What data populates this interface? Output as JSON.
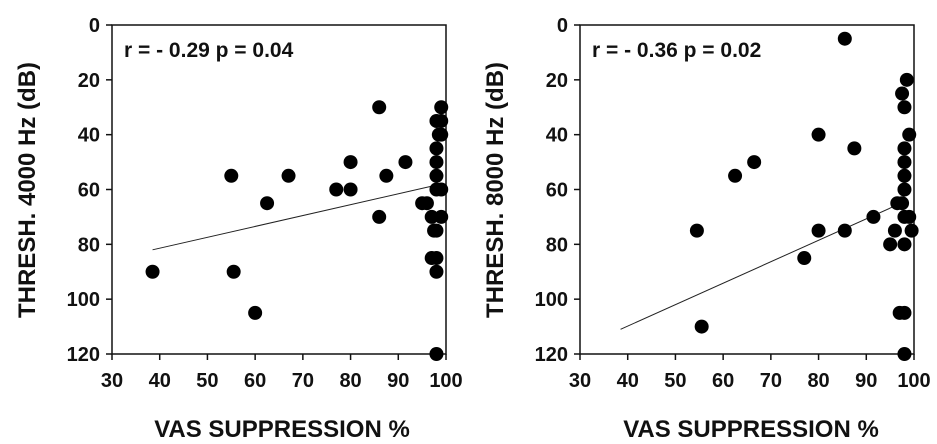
{
  "chart_data": [
    {
      "type": "scatter",
      "xlabel": "VAS SUPPRESSION %",
      "ylabel": "THRESH. 4000 Hz (dB)",
      "annotation": "r = - 0.29  p = 0.04",
      "xlim": [
        30,
        100
      ],
      "ylim": [
        0,
        120
      ],
      "y_inverted": true,
      "xticks": [
        "30",
        "40",
        "50",
        "60",
        "70",
        "80",
        "90",
        "100"
      ],
      "yticks": [
        "0",
        "20",
        "40",
        "60",
        "80",
        "100",
        "120"
      ],
      "points": [
        {
          "x": 38.5,
          "y": 90
        },
        {
          "x": 55,
          "y": 55
        },
        {
          "x": 55.5,
          "y": 90
        },
        {
          "x": 60,
          "y": 105
        },
        {
          "x": 62.5,
          "y": 65
        },
        {
          "x": 67,
          "y": 55
        },
        {
          "x": 77,
          "y": 60
        },
        {
          "x": 80,
          "y": 60
        },
        {
          "x": 80,
          "y": 50
        },
        {
          "x": 86,
          "y": 30
        },
        {
          "x": 86,
          "y": 70
        },
        {
          "x": 87.5,
          "y": 55
        },
        {
          "x": 91.5,
          "y": 50
        },
        {
          "x": 95,
          "y": 65
        },
        {
          "x": 96,
          "y": 65
        },
        {
          "x": 97,
          "y": 70
        },
        {
          "x": 97,
          "y": 85
        },
        {
          "x": 97.5,
          "y": 75
        },
        {
          "x": 98,
          "y": 35
        },
        {
          "x": 98,
          "y": 45
        },
        {
          "x": 98,
          "y": 50
        },
        {
          "x": 98,
          "y": 55
        },
        {
          "x": 98,
          "y": 60
        },
        {
          "x": 98,
          "y": 75
        },
        {
          "x": 98,
          "y": 85
        },
        {
          "x": 98,
          "y": 90
        },
        {
          "x": 98,
          "y": 120
        },
        {
          "x": 98.5,
          "y": 40
        },
        {
          "x": 99,
          "y": 30
        },
        {
          "x": 99,
          "y": 35
        },
        {
          "x": 99,
          "y": 40
        },
        {
          "x": 99,
          "y": 60
        },
        {
          "x": 99,
          "y": 70
        }
      ],
      "trendline": [
        {
          "x": 38.5,
          "y": 82
        },
        {
          "x": 99,
          "y": 58
        }
      ]
    },
    {
      "type": "scatter",
      "xlabel": "VAS SUPPRESSION %",
      "ylabel": "THRESH. 8000 Hz (dB)",
      "annotation": "r = - 0.36  p = 0.02",
      "xlim": [
        30,
        100
      ],
      "ylim": [
        0,
        120
      ],
      "y_inverted": true,
      "xticks": [
        "30",
        "40",
        "50",
        "60",
        "70",
        "80",
        "90",
        "100"
      ],
      "yticks": [
        "0",
        "20",
        "40",
        "60",
        "80",
        "100",
        "120"
      ],
      "points": [
        {
          "x": 54.5,
          "y": 75
        },
        {
          "x": 55.5,
          "y": 110
        },
        {
          "x": 62.5,
          "y": 55
        },
        {
          "x": 66.5,
          "y": 50
        },
        {
          "x": 77,
          "y": 85
        },
        {
          "x": 80,
          "y": 40
        },
        {
          "x": 80,
          "y": 75
        },
        {
          "x": 85.5,
          "y": 75
        },
        {
          "x": 85.5,
          "y": 5
        },
        {
          "x": 87.5,
          "y": 45
        },
        {
          "x": 91.5,
          "y": 70
        },
        {
          "x": 95,
          "y": 80
        },
        {
          "x": 96,
          "y": 75
        },
        {
          "x": 96.5,
          "y": 65
        },
        {
          "x": 97,
          "y": 105
        },
        {
          "x": 97.5,
          "y": 25
        },
        {
          "x": 97.5,
          "y": 65
        },
        {
          "x": 98,
          "y": 30
        },
        {
          "x": 98,
          "y": 45
        },
        {
          "x": 98,
          "y": 50
        },
        {
          "x": 98,
          "y": 55
        },
        {
          "x": 98,
          "y": 60
        },
        {
          "x": 98,
          "y": 70
        },
        {
          "x": 98,
          "y": 80
        },
        {
          "x": 98,
          "y": 105
        },
        {
          "x": 98,
          "y": 120
        },
        {
          "x": 98.5,
          "y": 20
        },
        {
          "x": 99,
          "y": 40
        },
        {
          "x": 99,
          "y": 70
        },
        {
          "x": 99.5,
          "y": 75
        }
      ],
      "trendline": [
        {
          "x": 38.5,
          "y": 111
        },
        {
          "x": 96,
          "y": 66
        }
      ]
    }
  ]
}
